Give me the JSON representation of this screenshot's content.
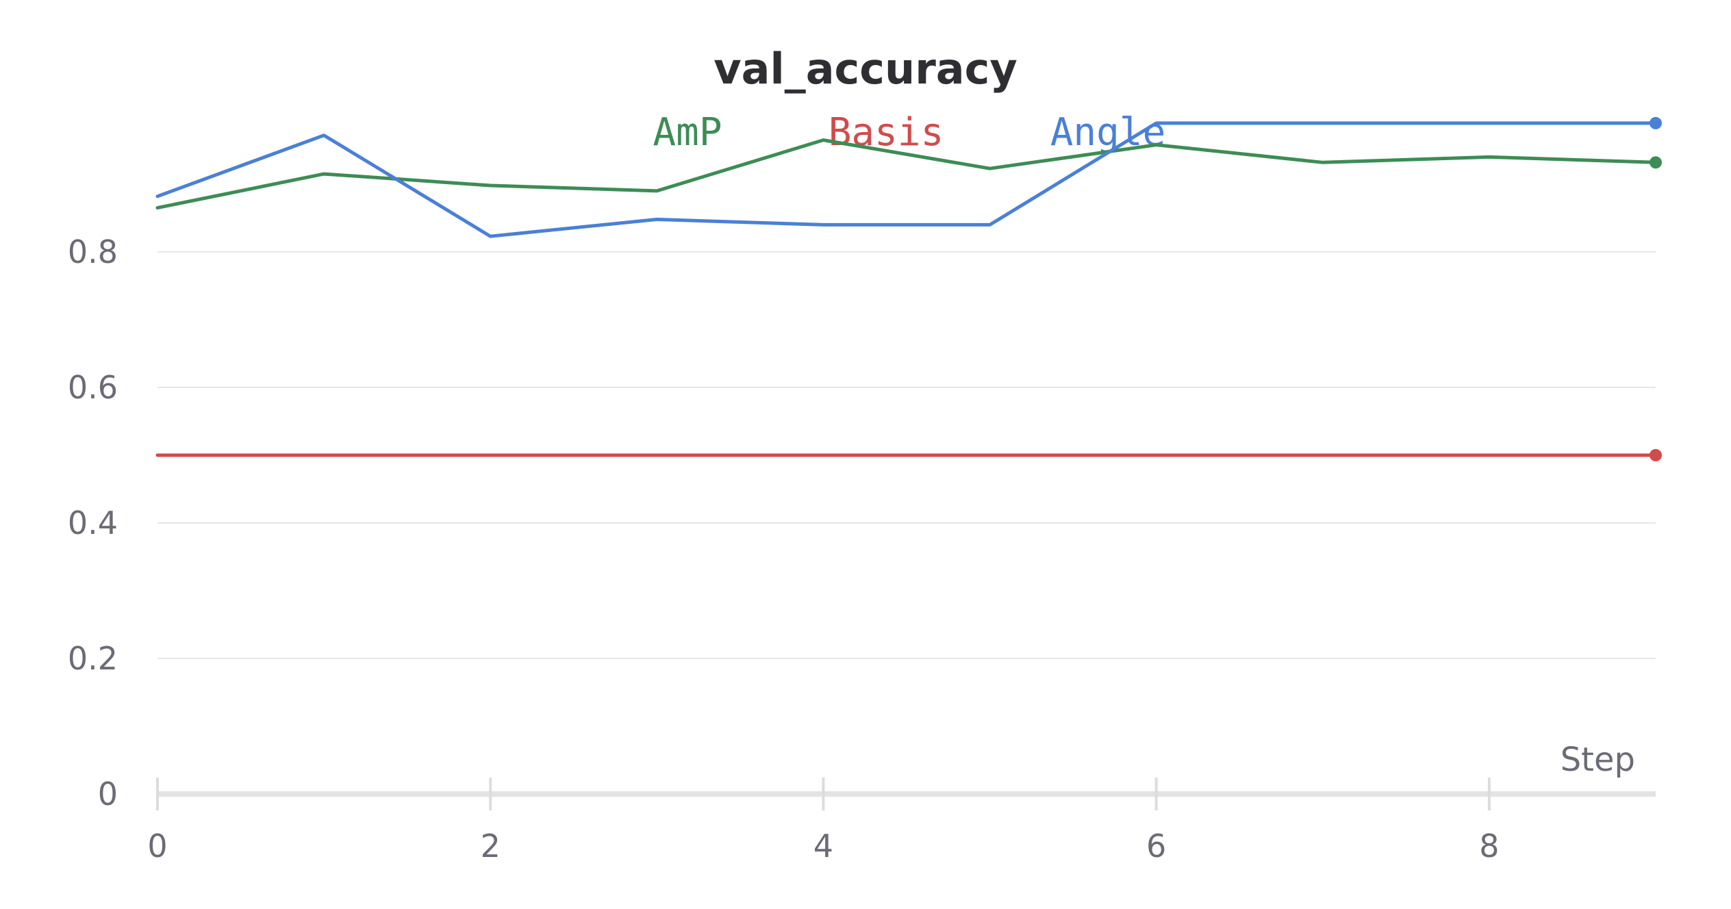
{
  "chart_data": {
    "type": "line",
    "title": "val_accuracy",
    "xlabel": "Step",
    "ylabel": "",
    "x": [
      0,
      1,
      2,
      3,
      4,
      5,
      6,
      7,
      8,
      9
    ],
    "xlim": [
      0,
      9
    ],
    "ylim": [
      0,
      1.0
    ],
    "x_ticks": [
      0,
      2,
      4,
      6,
      8
    ],
    "x_tick_labels": [
      "0",
      "2",
      "4",
      "6",
      "8"
    ],
    "y_ticks": [
      0,
      0.2,
      0.4,
      0.6,
      0.8
    ],
    "y_tick_labels": [
      "0",
      "0.2",
      "0.4",
      "0.6",
      "0.8"
    ],
    "grid": true,
    "legend_position": "top-center",
    "series": [
      {
        "name": "AmP",
        "color": "#3d8c55",
        "values": [
          0.865,
          0.915,
          0.898,
          0.89,
          0.965,
          0.923,
          0.958,
          0.932,
          0.94,
          0.932
        ]
      },
      {
        "name": "Basis",
        "color": "#d14b4b",
        "values": [
          0.5,
          0.5,
          0.5,
          0.5,
          0.5,
          0.5,
          0.5,
          0.5,
          0.5,
          0.5
        ]
      },
      {
        "name": "Angle",
        "color": "#4a80d6",
        "values": [
          0.882,
          0.972,
          0.823,
          0.848,
          0.84,
          0.84,
          0.99,
          0.99,
          0.99,
          0.99
        ]
      }
    ]
  }
}
